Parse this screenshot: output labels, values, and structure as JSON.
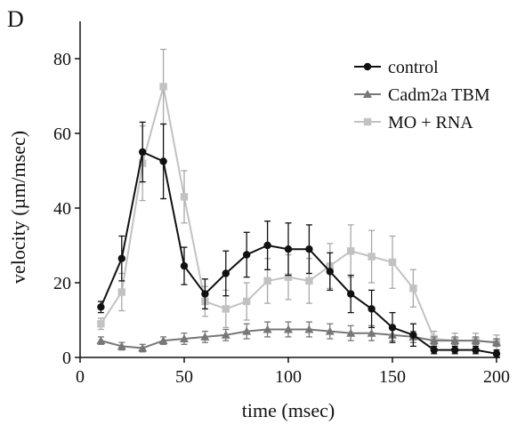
{
  "panel_label": "D",
  "chart_data": {
    "type": "line",
    "xlabel": "time (msec)",
    "ylabel": "velocity (µm/msec)",
    "xlim": [
      0,
      200
    ],
    "ylim": [
      0,
      90
    ],
    "xticks": [
      0,
      50,
      100,
      150,
      200
    ],
    "yticks": [
      0,
      20,
      40,
      60,
      80
    ],
    "grid": false,
    "legend_position": "top-right",
    "series": [
      {
        "name": "control",
        "color": "#111111",
        "marker": "circle",
        "x": [
          10,
          20,
          30,
          40,
          50,
          60,
          70,
          80,
          90,
          100,
          110,
          120,
          130,
          140,
          150,
          160,
          170,
          180,
          190,
          200
        ],
        "y": [
          13.5,
          26.5,
          55,
          52.5,
          24.5,
          17,
          22.5,
          27.5,
          30,
          29,
          29,
          23,
          17,
          13,
          8,
          6,
          2,
          2,
          2,
          1
        ],
        "err": [
          1.5,
          6,
          8,
          10,
          5,
          4,
          6,
          6,
          6.5,
          7,
          6.5,
          5,
          5,
          5,
          4,
          3,
          1,
          1,
          1,
          1
        ]
      },
      {
        "name": "Cadm2a TBM",
        "color": "#777777",
        "marker": "triangle",
        "x": [
          10,
          20,
          30,
          40,
          50,
          60,
          70,
          80,
          90,
          100,
          110,
          120,
          130,
          140,
          150,
          160,
          170,
          180,
          190,
          200
        ],
        "y": [
          4.5,
          3,
          2.5,
          4.5,
          5,
          5.5,
          6,
          7,
          7.5,
          7.5,
          7.5,
          7,
          6.5,
          6.5,
          6,
          5.5,
          4.5,
          4.5,
          4.5,
          4
        ],
        "err": [
          1,
          1,
          1,
          1,
          1.5,
          1.5,
          1.5,
          2,
          2,
          2,
          2,
          2,
          2,
          2,
          1.5,
          1.5,
          1,
          1,
          1,
          1
        ]
      },
      {
        "name": "MO + RNA",
        "color": "#c2c2c2",
        "marker": "square",
        "x": [
          10,
          20,
          30,
          40,
          50,
          60,
          70,
          80,
          90,
          100,
          110,
          120,
          130,
          140,
          150,
          160,
          170,
          180,
          190,
          200
        ],
        "y": [
          9,
          17.5,
          52,
          72.5,
          43,
          15,
          13,
          15,
          20.5,
          21.5,
          20.5,
          24.5,
          28.5,
          27,
          25.5,
          18.5,
          5,
          4.5,
          4.5,
          4
        ],
        "err": [
          1.5,
          5,
          10,
          10,
          7,
          4,
          5,
          5,
          6,
          6,
          6,
          6,
          7,
          7,
          7,
          5,
          2,
          2,
          2,
          2
        ]
      }
    ]
  }
}
